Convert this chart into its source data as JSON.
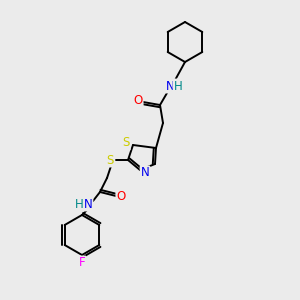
{
  "background_color": "#ebebeb",
  "bond_color": "#000000",
  "atom_colors": {
    "N": "#0000ee",
    "O": "#ff0000",
    "S": "#cccc00",
    "F": "#ff00ff",
    "NH": "#008888",
    "NH2": "#0000ee"
  },
  "figsize": [
    3.0,
    3.0
  ],
  "dpi": 100
}
